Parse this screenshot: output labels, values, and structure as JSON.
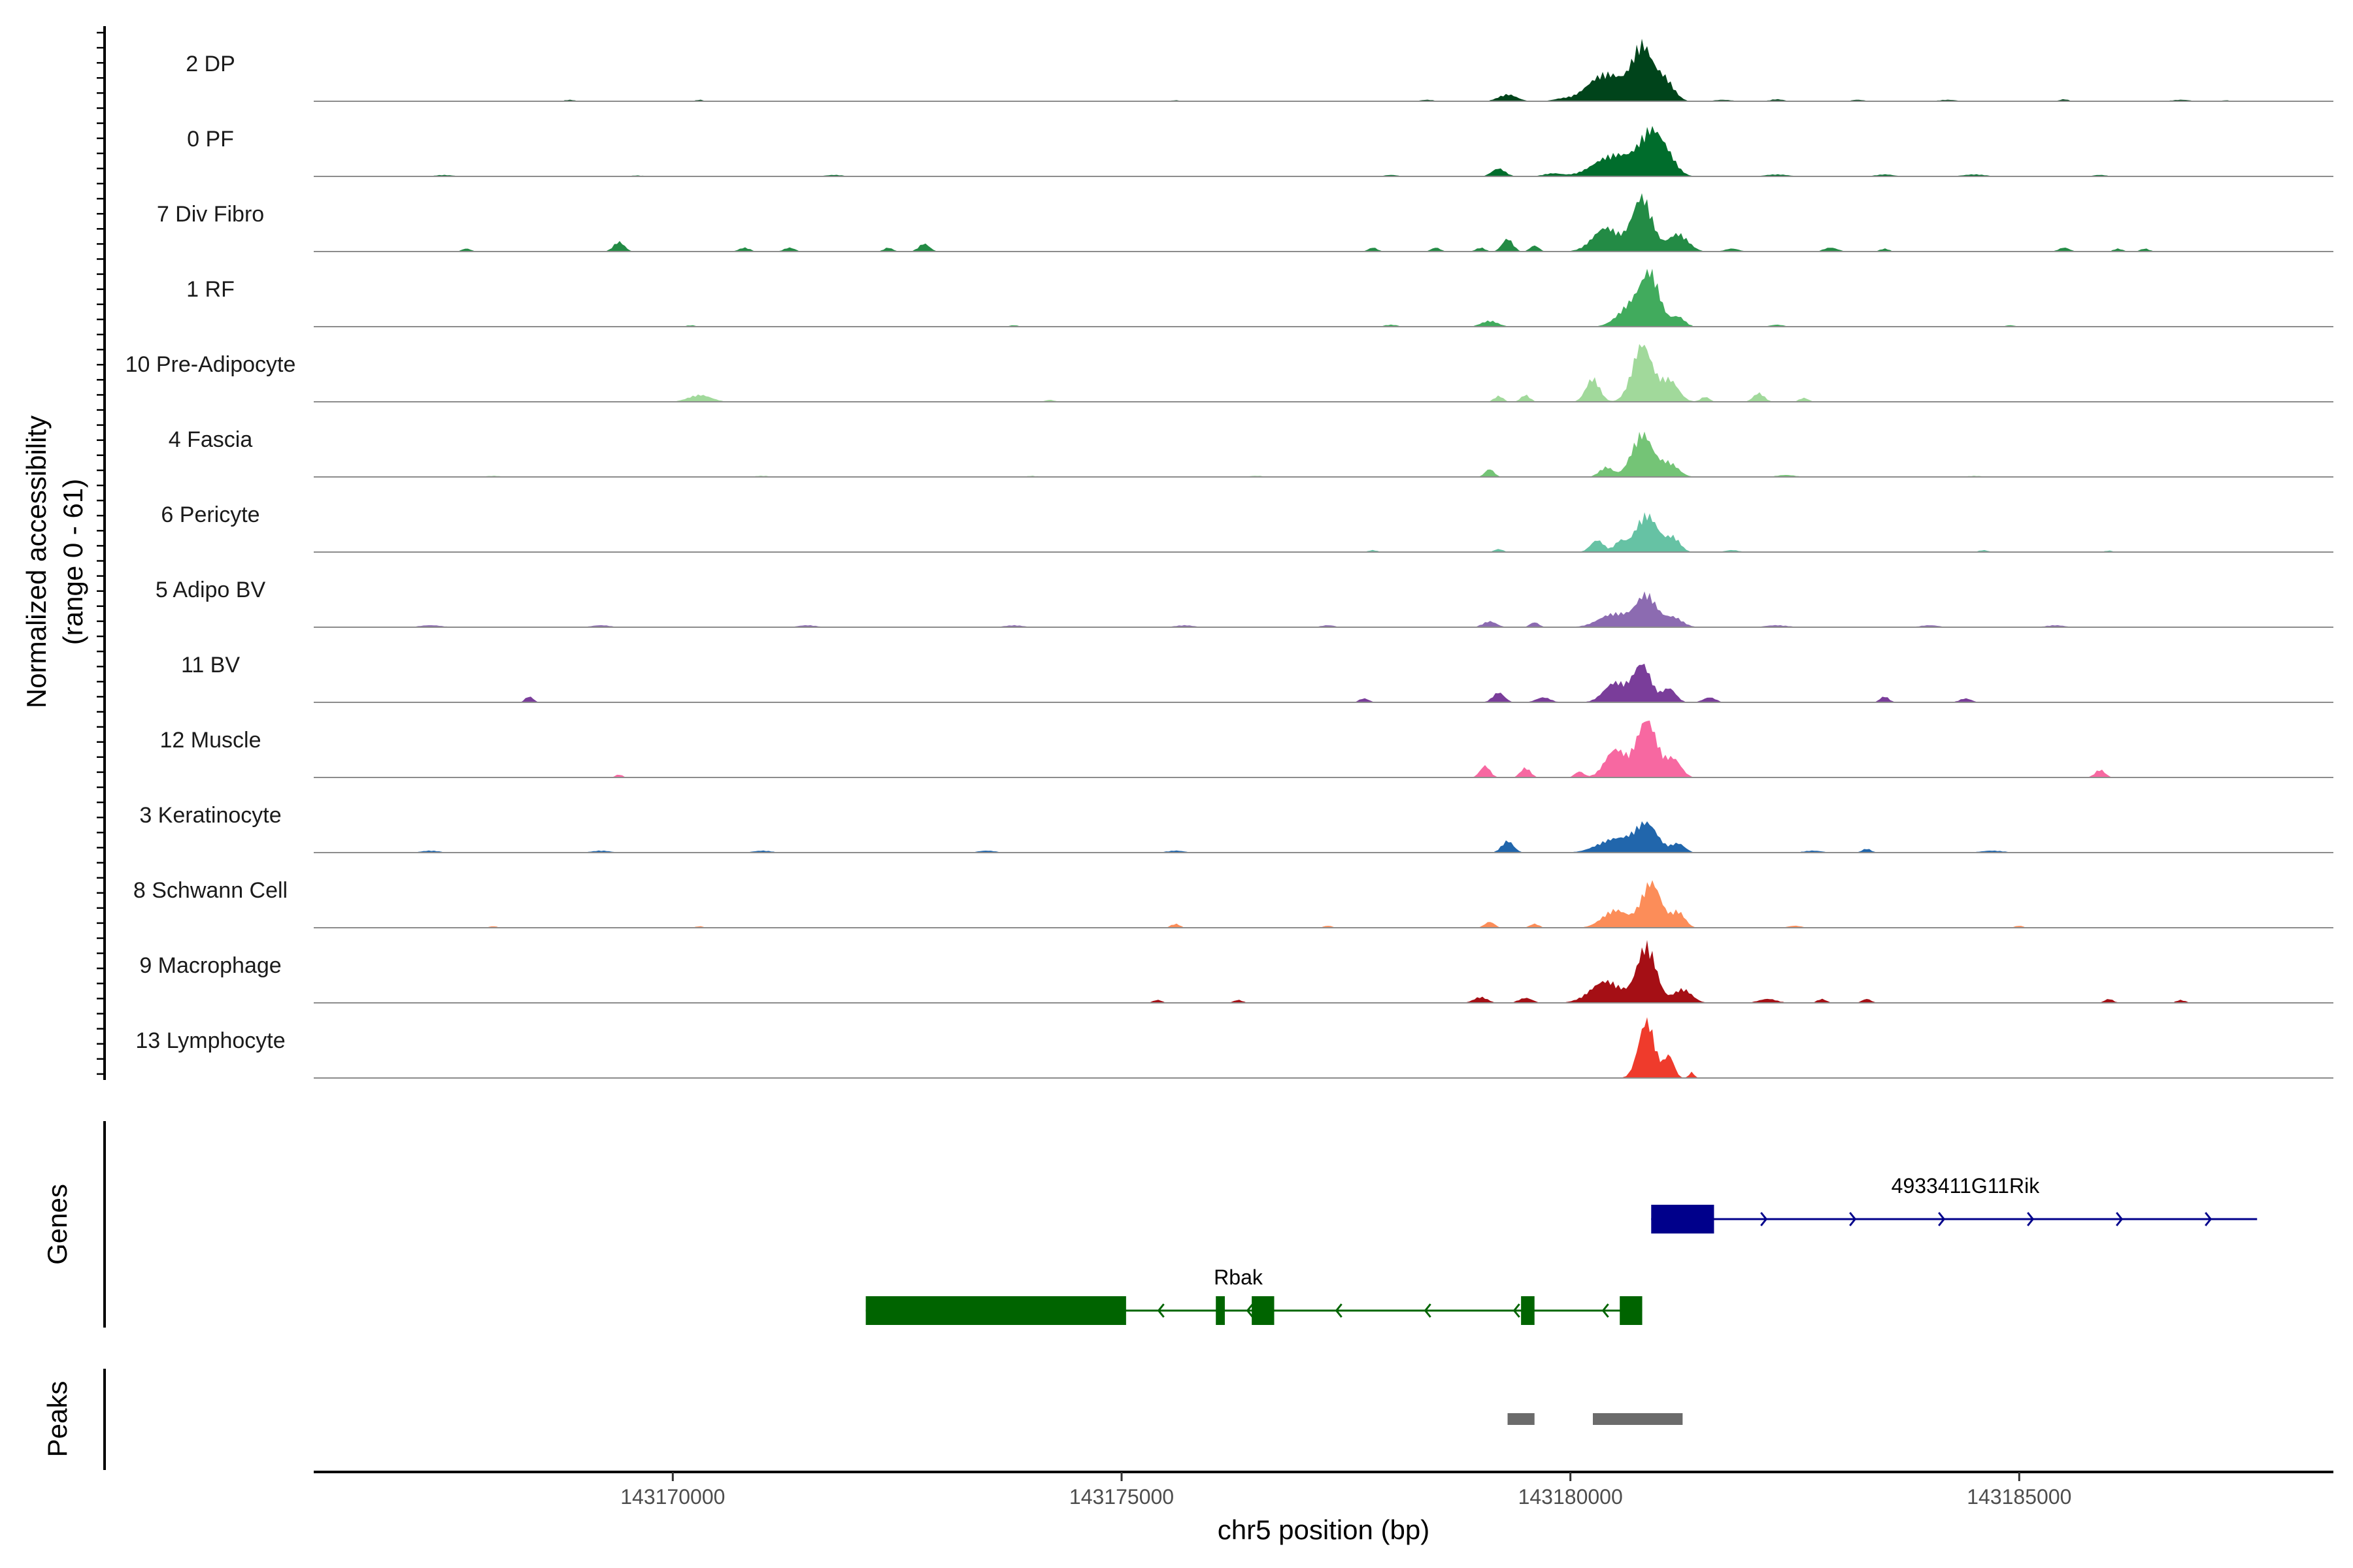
{
  "chart_data": {
    "type": "area",
    "subtype": "genome-coverage-tracks",
    "ylabel": "Normalized accessibility",
    "ylabel_range": "(range 0 - 61)",
    "ylim": [
      0,
      61
    ],
    "xlabel": "chr5 position (bp)",
    "xlim": [
      143166000,
      143188500
    ],
    "xticks": [
      143170000,
      143175000,
      143180000,
      143185000
    ],
    "grid": false,
    "legend": "none",
    "tracks": [
      {
        "name": "2 DP",
        "color": "#00441b",
        "peaks": [
          [
            143179300,
            7,
            200
          ],
          [
            143180400,
            28,
            400
          ],
          [
            143180800,
            54,
            220
          ],
          [
            143181050,
            22,
            200
          ],
          [
            143168850,
            1.5,
            120
          ],
          [
            143170300,
            1.5,
            100
          ],
          [
            143175600,
            1,
            100
          ],
          [
            143178400,
            1.5,
            150
          ],
          [
            143179900,
            2,
            200
          ],
          [
            143181700,
            1.5,
            200
          ],
          [
            143182300,
            2,
            150
          ],
          [
            143183200,
            1.5,
            150
          ],
          [
            143184200,
            1.5,
            200
          ],
          [
            143185500,
            2,
            100
          ],
          [
            143186800,
            1.5,
            200
          ],
          [
            143187300,
            1,
            100
          ]
        ]
      },
      {
        "name": "0 PF",
        "color": "#006d2c",
        "peaks": [
          [
            143179200,
            8,
            150
          ],
          [
            143180500,
            22,
            450
          ],
          [
            143180900,
            42,
            250
          ],
          [
            143181100,
            14,
            200
          ],
          [
            143167450,
            1.5,
            200
          ],
          [
            143169600,
            1,
            150
          ],
          [
            143171800,
            1.5,
            200
          ],
          [
            143178000,
            1.5,
            150
          ],
          [
            143179800,
            3,
            200
          ],
          [
            143182300,
            2,
            250
          ],
          [
            143183500,
            2,
            200
          ],
          [
            143184500,
            2,
            250
          ],
          [
            143185900,
            1.5,
            150
          ]
        ]
      },
      {
        "name": "7 Div Fibro",
        "color": "#238b45",
        "peaks": [
          [
            143179300,
            13,
            120
          ],
          [
            143179600,
            6,
            100
          ],
          [
            143180400,
            24,
            300
          ],
          [
            143180800,
            55,
            220
          ],
          [
            143181200,
            18,
            220
          ],
          [
            143167700,
            3,
            100
          ],
          [
            143169400,
            10,
            120
          ],
          [
            143170800,
            4,
            120
          ],
          [
            143171300,
            4,
            120
          ],
          [
            143172400,
            4,
            100
          ],
          [
            143172800,
            8,
            120
          ],
          [
            143177800,
            4,
            100
          ],
          [
            143178500,
            4,
            100
          ],
          [
            143179000,
            4,
            100
          ],
          [
            143181800,
            3,
            150
          ],
          [
            143182900,
            4,
            150
          ],
          [
            143183500,
            3,
            100
          ],
          [
            143185500,
            4,
            120
          ],
          [
            143186100,
            3,
            100
          ],
          [
            143186400,
            3,
            100
          ]
        ]
      },
      {
        "name": "1 RF",
        "color": "#41ab5d",
        "peaks": [
          [
            143179100,
            6,
            180
          ],
          [
            143180700,
            24,
            300
          ],
          [
            143180900,
            46,
            200
          ],
          [
            143181200,
            10,
            150
          ],
          [
            143170200,
            1.5,
            100
          ],
          [
            143173800,
            1.5,
            100
          ],
          [
            143178000,
            2,
            150
          ],
          [
            143182300,
            2,
            150
          ],
          [
            143184900,
            1.5,
            100
          ]
        ]
      },
      {
        "name": "10 Pre-Adipocyte",
        "color": "#a1d99b",
        "peaks": [
          [
            143179200,
            6,
            100
          ],
          [
            143179500,
            7,
            100
          ],
          [
            143180250,
            24,
            150
          ],
          [
            143180800,
            58,
            220
          ],
          [
            143181100,
            22,
            200
          ],
          [
            143170300,
            7,
            250
          ],
          [
            143174200,
            2,
            100
          ],
          [
            143181500,
            5,
            100
          ],
          [
            143182100,
            9,
            120
          ],
          [
            143182600,
            4,
            100
          ]
        ]
      },
      {
        "name": "4 Fascia",
        "color": "#74c476",
        "peaks": [
          [
            143179100,
            8,
            100
          ],
          [
            143180400,
            10,
            150
          ],
          [
            143180800,
            44,
            230
          ],
          [
            143181100,
            14,
            200
          ],
          [
            143168000,
            1,
            200
          ],
          [
            143171000,
            1,
            200
          ],
          [
            143174000,
            1,
            150
          ],
          [
            143176500,
            1,
            200
          ],
          [
            143182400,
            2,
            200
          ],
          [
            143184500,
            1,
            200
          ]
        ]
      },
      {
        "name": "6 Pericyte",
        "color": "#66c2a4",
        "peaks": [
          [
            143180300,
            12,
            150
          ],
          [
            143180550,
            10,
            120
          ],
          [
            143180850,
            38,
            250
          ],
          [
            143181150,
            14,
            150
          ],
          [
            143177800,
            2,
            100
          ],
          [
            143179200,
            3,
            100
          ],
          [
            143181800,
            2,
            150
          ],
          [
            143184600,
            2,
            100
          ],
          [
            143186000,
            1.5,
            100
          ]
        ]
      },
      {
        "name": "5 Adipo BV",
        "color": "#8c6bb1",
        "peaks": [
          [
            143179100,
            6,
            150
          ],
          [
            143179600,
            5,
            100
          ],
          [
            143180500,
            14,
            350
          ],
          [
            143180850,
            32,
            220
          ],
          [
            143181150,
            10,
            200
          ],
          [
            143167300,
            2,
            250
          ],
          [
            143169200,
            2,
            200
          ],
          [
            143171500,
            2,
            200
          ],
          [
            143173800,
            2,
            200
          ],
          [
            143175700,
            2,
            200
          ],
          [
            143177300,
            2,
            150
          ],
          [
            143182300,
            2,
            250
          ],
          [
            143184000,
            2,
            200
          ],
          [
            143185400,
            2,
            200
          ]
        ]
      },
      {
        "name": "11 BV",
        "color": "#7a3d9a",
        "peaks": [
          [
            143168400,
            6,
            90
          ],
          [
            143177700,
            4,
            110
          ],
          [
            143179200,
            10,
            130
          ],
          [
            143179700,
            5,
            160
          ],
          [
            143180500,
            20,
            250
          ],
          [
            143180800,
            38,
            200
          ],
          [
            143181100,
            14,
            150
          ],
          [
            143181550,
            5,
            140
          ],
          [
            143183500,
            6,
            100
          ],
          [
            143184400,
            4,
            130
          ]
        ]
      },
      {
        "name": "12 Muscle",
        "color": "#f768a1",
        "peaks": [
          [
            143169400,
            3,
            80
          ],
          [
            143179050,
            12,
            110
          ],
          [
            143179500,
            10,
            110
          ],
          [
            143180100,
            6,
            100
          ],
          [
            143180500,
            28,
            230
          ],
          [
            143180850,
            58,
            230
          ],
          [
            143181150,
            18,
            170
          ],
          [
            143185900,
            8,
            110
          ]
        ]
      },
      {
        "name": "3 Keratinocyte",
        "color": "#2166ac",
        "peaks": [
          [
            143179300,
            12,
            130
          ],
          [
            143180500,
            14,
            380
          ],
          [
            143180850,
            28,
            250
          ],
          [
            143181200,
            9,
            150
          ],
          [
            143167300,
            2,
            200
          ],
          [
            143169200,
            2,
            200
          ],
          [
            143171000,
            2,
            200
          ],
          [
            143173500,
            2,
            200
          ],
          [
            143175600,
            2,
            200
          ],
          [
            143182700,
            2,
            200
          ],
          [
            143183300,
            4,
            100
          ],
          [
            143184700,
            2,
            250
          ]
        ]
      },
      {
        "name": "8 Schwann Cell",
        "color": "#fc8d59",
        "peaks": [
          [
            143179100,
            6,
            110
          ],
          [
            143179600,
            4,
            100
          ],
          [
            143180500,
            18,
            280
          ],
          [
            143180900,
            46,
            220
          ],
          [
            143181200,
            16,
            150
          ],
          [
            143168000,
            1.5,
            100
          ],
          [
            143170300,
            1.5,
            100
          ],
          [
            143175600,
            4,
            100
          ],
          [
            143177300,
            2,
            100
          ],
          [
            143182500,
            2,
            150
          ],
          [
            143185000,
            2,
            100
          ]
        ]
      },
      {
        "name": "9 Macrophage",
        "color": "#a50f15",
        "peaks": [
          [
            143175400,
            3,
            100
          ],
          [
            143176300,
            3,
            100
          ],
          [
            143179000,
            6,
            150
          ],
          [
            143179500,
            5,
            150
          ],
          [
            143180400,
            22,
            350
          ],
          [
            143180850,
            58,
            210
          ],
          [
            143181250,
            14,
            200
          ],
          [
            143182200,
            4,
            200
          ],
          [
            143182800,
            4,
            100
          ],
          [
            143183300,
            4,
            100
          ],
          [
            143186000,
            4,
            100
          ],
          [
            143186800,
            3,
            100
          ]
        ]
      },
      {
        "name": "13 Lymphocyte",
        "color": "#ef3b2c",
        "peaks": [
          [
            143180850,
            58,
            180
          ],
          [
            143181100,
            22,
            110
          ],
          [
            143181350,
            6,
            60
          ]
        ]
      }
    ],
    "genes": [
      {
        "name": "4933411G11Rik",
        "strand": "+",
        "color": "#00008b",
        "start": 143180900,
        "end": 143187650,
        "exons": [
          [
            143180900,
            143181600
          ]
        ]
      },
      {
        "name": "Rbak",
        "strand": "-",
        "color": "#006400",
        "start": 143172150,
        "end": 143180800,
        "exons": [
          [
            143172150,
            143175050
          ],
          [
            143176050,
            143176150
          ],
          [
            143176450,
            143176700
          ],
          [
            143179450,
            143179600
          ],
          [
            143180550,
            143180800
          ]
        ]
      }
    ],
    "peaks_label": "Peaks",
    "genes_label": "Genes",
    "peak_regions": [
      [
        143179300,
        143179600
      ],
      [
        143180250,
        143181250
      ]
    ]
  }
}
